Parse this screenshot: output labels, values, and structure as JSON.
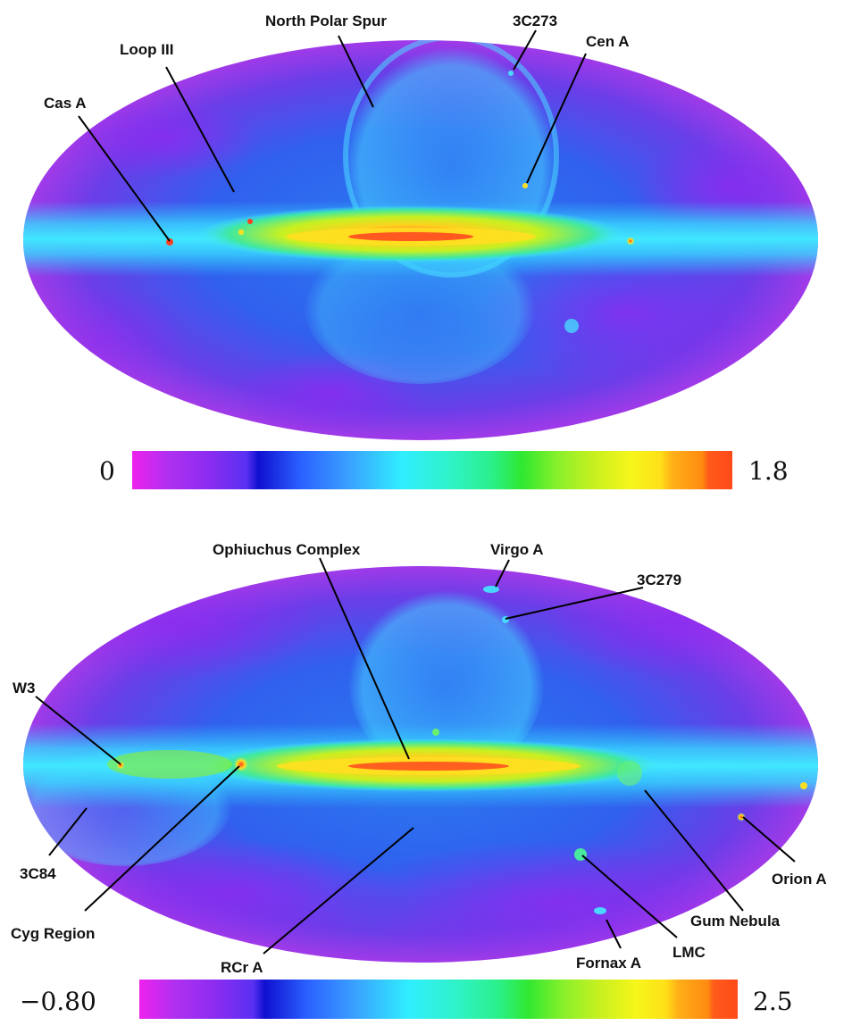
{
  "top_map": {
    "colorbar": {
      "min_label": "0",
      "max_label": "1.8"
    },
    "annotations": [
      {
        "key": "north-polar-spur",
        "text": "North Polar Spur"
      },
      {
        "key": "3c273",
        "text": "3C273"
      },
      {
        "key": "cen-a",
        "text": "Cen A"
      },
      {
        "key": "loop-iii",
        "text": "Loop III"
      },
      {
        "key": "cas-a",
        "text": "Cas A"
      }
    ]
  },
  "bottom_map": {
    "colorbar": {
      "min_label": "−0.80",
      "max_label": "2.5"
    },
    "annotations": [
      {
        "key": "ophiuchus-complex",
        "text": "Ophiuchus Complex"
      },
      {
        "key": "virgo-a",
        "text": "Virgo A"
      },
      {
        "key": "3c279",
        "text": "3C279"
      },
      {
        "key": "w3",
        "text": "W3"
      },
      {
        "key": "3c84",
        "text": "3C84"
      },
      {
        "key": "cyg-region",
        "text": "Cyg Region"
      },
      {
        "key": "rcr-a",
        "text": "RCr A"
      },
      {
        "key": "fornax-a",
        "text": "Fornax A"
      },
      {
        "key": "lmc",
        "text": "LMC"
      },
      {
        "key": "gum-nebula",
        "text": "Gum Nebula"
      },
      {
        "key": "orion-a",
        "text": "Orion A"
      }
    ]
  },
  "colormap": [
    "#ee22ee",
    "#b030f0",
    "#8a2cf0",
    "#5a30f2",
    "#1f1fd8",
    "#2a60ff",
    "#3aa0ff",
    "#30e6ff",
    "#2ff2c8",
    "#2af08a",
    "#30e830",
    "#8af02a",
    "#c8f020",
    "#f6f61a",
    "#ffc018",
    "#ff9010",
    "#ff5a1a"
  ]
}
